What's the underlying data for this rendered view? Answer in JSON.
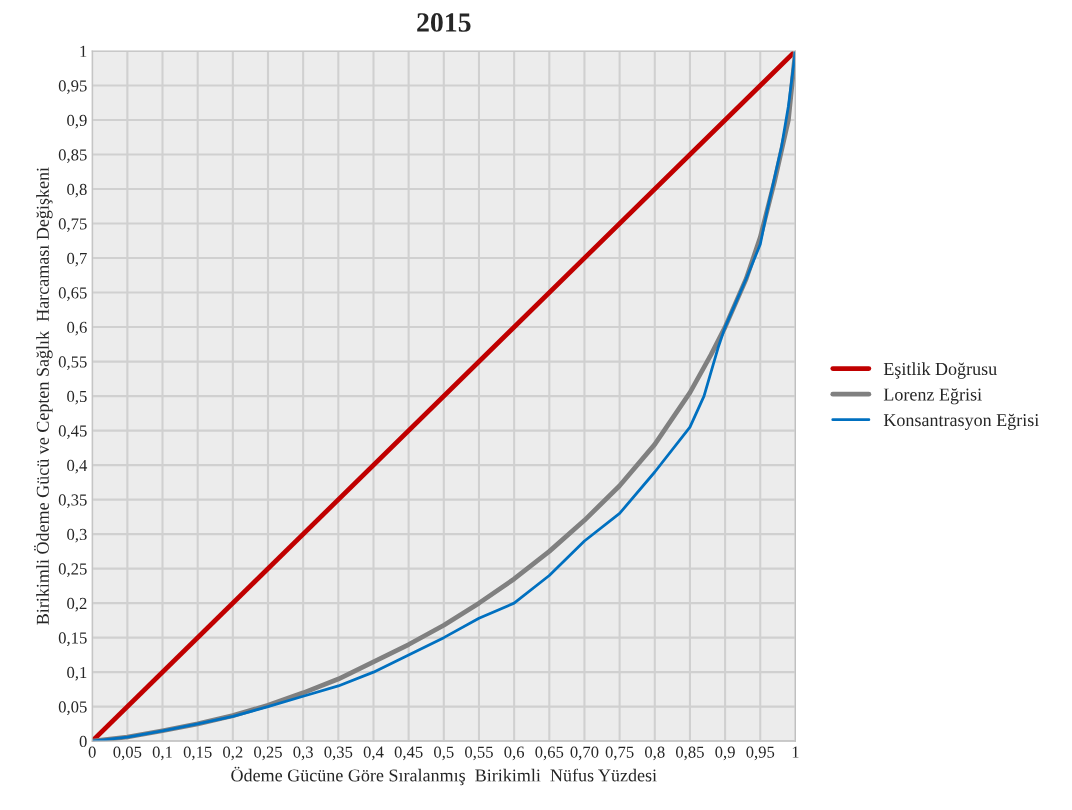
{
  "chart_data": {
    "type": "line",
    "title": "2015",
    "xlabel": "Ödeme Gücüne Göre Sıralanmış  Birikimli  Nüfus Yüzdesi",
    "ylabel": "Birikimli Ödeme Gücü ve Cepten Sağlık  Harcaması Değişkeni",
    "xlim": [
      0,
      1
    ],
    "ylim": [
      0,
      1
    ],
    "xticks": [
      0,
      {
        "value": 0.05,
        "label": "0,05"
      },
      {
        "value": 0.1,
        "label": "0,1"
      },
      {
        "value": 0.15,
        "label": "0,15"
      },
      {
        "value": 0.2,
        "label": "0,2"
      },
      {
        "value": 0.25,
        "label": "0,25"
      },
      {
        "value": 0.3,
        "label": "0,3"
      },
      {
        "value": 0.35,
        "label": "0,35"
      },
      {
        "value": 0.4,
        "label": "0,4"
      },
      {
        "value": 0.45,
        "label": "0,45"
      },
      {
        "value": 0.5,
        "label": "0,5"
      },
      {
        "value": 0.55,
        "label": "0,55"
      },
      {
        "value": 0.6,
        "label": "0,6"
      },
      {
        "value": 0.65,
        "label": "0,65"
      },
      {
        "value": 0.7,
        "label": "0,70"
      },
      {
        "value": 0.75,
        "label": "0,75"
      },
      {
        "value": 0.8,
        "label": "0,8"
      },
      {
        "value": 0.85,
        "label": "0,85"
      },
      {
        "value": 0.9,
        "label": "0,9"
      },
      {
        "value": 0.95,
        "label": "0,95"
      },
      1
    ],
    "yticks": [
      0,
      {
        "value": 0.05,
        "label": "0,05"
      },
      {
        "value": 0.1,
        "label": "0,1"
      },
      {
        "value": 0.15,
        "label": "0,15"
      },
      {
        "value": 0.2,
        "label": "0,2"
      },
      {
        "value": 0.25,
        "label": "0,25"
      },
      {
        "value": 0.3,
        "label": "0,3"
      },
      {
        "value": 0.35,
        "label": "0,35"
      },
      {
        "value": 0.4,
        "label": "0,4"
      },
      {
        "value": 0.45,
        "label": "0,45"
      },
      {
        "value": 0.5,
        "label": "0,5"
      },
      {
        "value": 0.55,
        "label": "0,55"
      },
      {
        "value": 0.6,
        "label": "0,6"
      },
      {
        "value": 0.65,
        "label": "0,65"
      },
      {
        "value": 0.7,
        "label": "0,7"
      },
      {
        "value": 0.75,
        "label": "0,75"
      },
      {
        "value": 0.8,
        "label": "0,8"
      },
      {
        "value": 0.85,
        "label": "0,85"
      },
      {
        "value": 0.9,
        "label": "0,9"
      },
      {
        "value": 0.95,
        "label": "0,95"
      },
      1
    ],
    "grid": true,
    "legend": "right",
    "marker": "none",
    "line_style": "solid",
    "series": [
      {
        "name": "Eşitlik Doğrusu",
        "color": "#c00000",
        "x": [
          0,
          1
        ],
        "values": [
          0,
          1
        ]
      },
      {
        "name": "Lorenz Eğrisi",
        "color": "#808080",
        "x": [
          0,
          0.05,
          0.1,
          0.15,
          0.2,
          0.25,
          0.3,
          0.35,
          0.4,
          0.45,
          0.5,
          0.55,
          0.6,
          0.65,
          0.7,
          0.75,
          0.8,
          0.85,
          0.88,
          0.9,
          0.93,
          0.95,
          0.97,
          0.99,
          1
        ],
        "values": [
          0,
          0.006,
          0.015,
          0.025,
          0.037,
          0.052,
          0.07,
          0.09,
          0.115,
          0.14,
          0.168,
          0.2,
          0.235,
          0.275,
          0.32,
          0.37,
          0.43,
          0.505,
          0.56,
          0.6,
          0.67,
          0.73,
          0.81,
          0.9,
          1
        ]
      },
      {
        "name": "Konsantrasyon Eğrisi",
        "color": "#0070c0",
        "x": [
          0,
          0.05,
          0.1,
          0.15,
          0.2,
          0.25,
          0.3,
          0.35,
          0.4,
          0.45,
          0.5,
          0.55,
          0.6,
          0.65,
          0.7,
          0.75,
          0.8,
          0.85,
          0.87,
          0.89,
          0.9,
          0.93,
          0.95,
          0.96,
          0.98,
          0.99,
          1
        ],
        "values": [
          0,
          0.006,
          0.015,
          0.025,
          0.036,
          0.05,
          0.065,
          0.08,
          0.1,
          0.125,
          0.15,
          0.178,
          0.2,
          0.24,
          0.29,
          0.33,
          0.39,
          0.455,
          0.5,
          0.57,
          0.6,
          0.67,
          0.72,
          0.77,
          0.86,
          0.92,
          1
        ]
      }
    ]
  }
}
